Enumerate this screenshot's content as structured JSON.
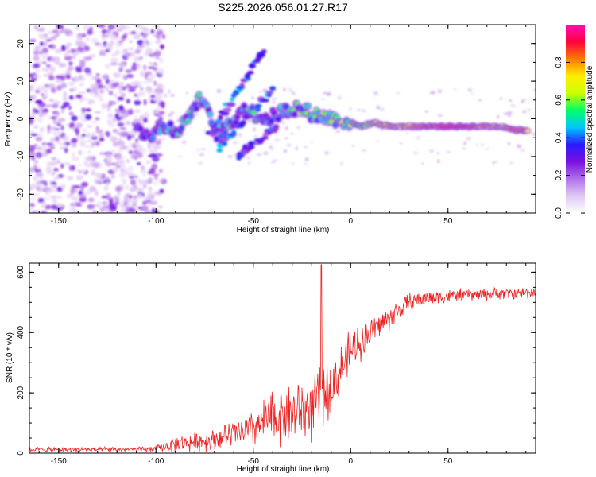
{
  "title": "S225.2026.056.01.27.R17",
  "chart_data": [
    {
      "type": "heatmap",
      "name": "spectrogram",
      "xlabel": "Height of straight line (km)",
      "ylabel": "Frequency (Hz)",
      "xlim": [
        -165,
        95
      ],
      "ylim": [
        -25,
        25
      ],
      "xticks": [
        -150,
        -100,
        -50,
        0,
        50
      ],
      "yticks": [
        -20,
        -10,
        0,
        10,
        20
      ],
      "colorbar": {
        "label": "Normalized spectral amplitude",
        "range": [
          0,
          1
        ],
        "ticks": [
          0.0,
          0.2,
          0.4,
          0.6,
          0.8
        ],
        "tick_labels": [
          "0.0",
          "0.2",
          "0.4",
          "0.6",
          "0.8"
        ],
        "colors": [
          "#ffffff",
          "#e0c8f4",
          "#b070e8",
          "#7a10e0",
          "#2a1bff",
          "#00c8ff",
          "#00ff66",
          "#ccff00",
          "#ffee00",
          "#ff7a00",
          "#ff0040",
          "#ff10b0"
        ]
      },
      "features": {
        "noise_region_km": [
          -165,
          -100
        ],
        "track_points": [
          {
            "x": -110,
            "f": -3,
            "a": 0.35
          },
          {
            "x": -102,
            "f": -4,
            "a": 0.4
          },
          {
            "x": -95,
            "f": -2,
            "a": 0.45
          },
          {
            "x": -88,
            "f": -3,
            "a": 0.5
          },
          {
            "x": -82,
            "f": 2,
            "a": 0.45
          },
          {
            "x": -76,
            "f": 6,
            "a": 0.5
          },
          {
            "x": -70,
            "f": -4,
            "a": 0.4
          },
          {
            "x": -62,
            "f": -2,
            "a": 0.5
          },
          {
            "x": -56,
            "f": 3,
            "a": 0.45
          },
          {
            "x": -48,
            "f": 1,
            "a": 0.5
          },
          {
            "x": -42,
            "f": 0,
            "a": 0.45
          },
          {
            "x": -35,
            "f": 2,
            "a": 0.5
          },
          {
            "x": -28,
            "f": 3,
            "a": 0.55
          },
          {
            "x": -18,
            "f": 1,
            "a": 0.6
          },
          {
            "x": -8,
            "f": 0,
            "a": 0.7
          },
          {
            "x": 0,
            "f": -1,
            "a": 0.6
          },
          {
            "x": 5,
            "f": -2,
            "a": 0.55
          },
          {
            "x": 12,
            "f": -1,
            "a": 0.65
          },
          {
            "x": 20,
            "f": -2,
            "a": 0.7
          },
          {
            "x": 30,
            "f": -2,
            "a": 0.75
          },
          {
            "x": 40,
            "f": -2,
            "a": 0.85
          },
          {
            "x": 50,
            "f": -2,
            "a": 0.9
          },
          {
            "x": 60,
            "f": -2,
            "a": 0.88
          },
          {
            "x": 70,
            "f": -2,
            "a": 0.75
          },
          {
            "x": 78,
            "f": -2,
            "a": 0.7
          },
          {
            "x": 85,
            "f": -3,
            "a": 0.85
          },
          {
            "x": 91,
            "f": -3,
            "a": 0.8
          }
        ],
        "streaks": [
          {
            "x0": -72,
            "f0": -4,
            "x1": -45,
            "f1": 18
          },
          {
            "x0": -68,
            "f0": -8,
            "x1": -40,
            "f1": 8
          },
          {
            "x0": -58,
            "f0": -10,
            "x1": -38,
            "f1": -2
          }
        ]
      }
    },
    {
      "type": "line",
      "name": "snr",
      "xlabel": "Height of straight line (km)",
      "ylabel": "SNR (10 * v/v)",
      "xlim": [
        -165,
        95
      ],
      "ylim": [
        0,
        630
      ],
      "xticks": [
        -150,
        -100,
        -50,
        0,
        50
      ],
      "yticks": [
        0,
        200,
        400,
        600
      ],
      "color": "#ee2222",
      "envelope": {
        "x": [
          -165,
          -110,
          -100,
          -90,
          -70,
          -50,
          -40,
          -30,
          -20,
          -10,
          0,
          10,
          20,
          30,
          40,
          60,
          80,
          95
        ],
        "base": [
          12,
          12,
          15,
          30,
          45,
          80,
          120,
          130,
          150,
          220,
          340,
          400,
          450,
          500,
          515,
          525,
          530,
          535
        ],
        "amplitude": [
          8,
          8,
          10,
          25,
          35,
          60,
          90,
          100,
          110,
          90,
          70,
          50,
          40,
          30,
          25,
          20,
          20,
          20
        ]
      },
      "spike": {
        "x": -15,
        "value": 625
      }
    }
  ]
}
